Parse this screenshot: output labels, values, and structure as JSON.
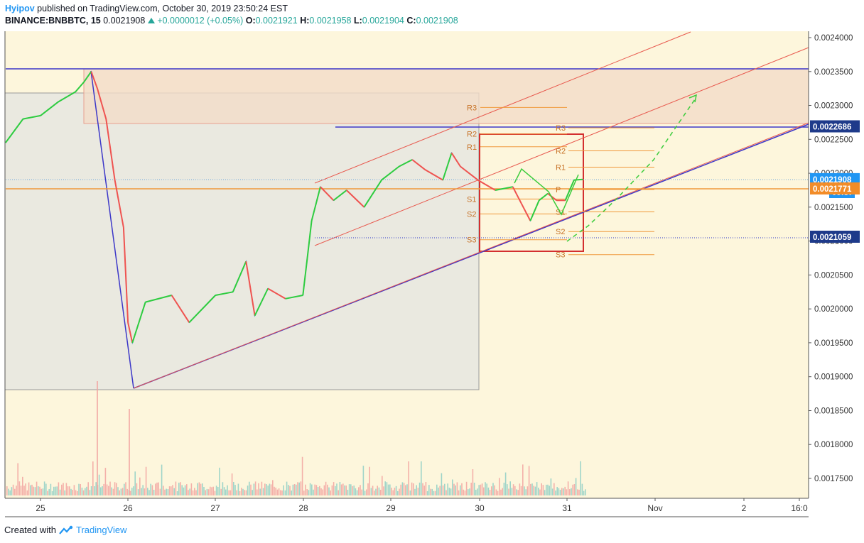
{
  "header": {
    "author": "Hyipov",
    "published_text": "published on TradingView.com, October 30, 2019 23:50:24 EST",
    "symbol": "BINANCE:BNBBTC, 15",
    "last": "0.0021908",
    "change": "+0.0000012 (+0.05%)",
    "o_label": "O:",
    "o_value": "0.0021921",
    "h_label": "H:",
    "h_value": "0.0021958",
    "l_label": "L:",
    "l_value": "0.0021904",
    "c_label": "C:",
    "c_value": "0.0021908"
  },
  "footer": {
    "created_with": "Created with",
    "brand": "TradingView"
  },
  "colors": {
    "background": "#fdf6dc",
    "candle_up": "#26a69a",
    "candle_down": "#ef5350",
    "pivot_orange": "#f0983b",
    "trend_blue": "#3c37c8",
    "channel_red": "#e85a4f",
    "box_red": "#d32f2f",
    "zone_grey": "#9a9a9a",
    "label_blue": "#1e3a8a",
    "label_orange": "#f28c28"
  },
  "chart_data": {
    "type": "line",
    "title": "BINANCE:BNBBTC, 15",
    "x_tick_labels": [
      "25",
      "26",
      "27",
      "28",
      "29",
      "30",
      "31",
      "Nov",
      "2",
      "16:0"
    ],
    "y_tick_labels": [
      "0.0024000",
      "0.0023500",
      "0.0023000",
      "0.0022500",
      "0.0022000",
      "0.0021500",
      "0.0021000",
      "0.0020500",
      "0.0020000",
      "0.0019500",
      "0.0019000",
      "0.0018500",
      "0.0018000",
      "0.0017500"
    ],
    "ylim": [
      0.00171,
      0.00241
    ],
    "xlim_days": [
      24.6,
      34.1
    ],
    "series": [
      {
        "name": "",
        "x": [
          24.6,
          24.8,
          25.0,
          25.2,
          25.4,
          25.5,
          25.58,
          25.65,
          25.75,
          25.85,
          25.95,
          26.0,
          26.05,
          26.2,
          26.5,
          26.7,
          27.0,
          27.2,
          27.35,
          27.45,
          27.6,
          27.8,
          28.0,
          28.05,
          28.1,
          28.2,
          28.35,
          28.5,
          28.7,
          28.9,
          29.1,
          29.25,
          29.4,
          29.6,
          29.7,
          29.8,
          30.0,
          30.2,
          30.4,
          30.5,
          30.6,
          30.7,
          30.8,
          30.9,
          31.0,
          31.1,
          31.2
        ],
        "values": [
          0.002245,
          0.00228,
          0.002285,
          0.002305,
          0.00232,
          0.002335,
          0.00235,
          0.002325,
          0.00228,
          0.00219,
          0.00212,
          0.00198,
          0.00195,
          0.00201,
          0.00202,
          0.00198,
          0.00202,
          0.002025,
          0.00207,
          0.00199,
          0.00203,
          0.002015,
          0.00202,
          0.002075,
          0.00213,
          0.00218,
          0.00216,
          0.002175,
          0.00215,
          0.00219,
          0.00221,
          0.00222,
          0.002205,
          0.00219,
          0.00223,
          0.00221,
          0.00219,
          0.002175,
          0.00218,
          0.002155,
          0.00213,
          0.00216,
          0.00217,
          0.00216,
          0.00216,
          0.00219,
          0.002191
        ]
      }
    ],
    "price_labels": [
      {
        "text": "0.0022686",
        "value": 0.0022686,
        "kind": "blue"
      },
      {
        "text": "0.0021908",
        "value": 0.0021908,
        "kind": "light-blue"
      },
      {
        "text": "09:37",
        "kind": "countdown"
      },
      {
        "text": "0.0021771",
        "value": 0.0021771,
        "kind": "orange"
      },
      {
        "text": "0.0021059",
        "value": 0.0021059,
        "kind": "blue"
      }
    ],
    "pivots": [
      {
        "label": "R3",
        "value": 0.002297
      },
      {
        "label": "R2",
        "value": 0.002258
      },
      {
        "label": "R1",
        "value": 0.002239
      },
      {
        "label": "S1",
        "value": 0.002162
      },
      {
        "label": "S2",
        "value": 0.00214
      },
      {
        "label": "S3",
        "value": 0.002102
      },
      {
        "label": "R3",
        "value": 0.002267
      },
      {
        "label": "R2",
        "value": 0.002233
      },
      {
        "label": "R1",
        "value": 0.002209
      },
      {
        "label": "P",
        "value": 0.002176
      },
      {
        "label": "S1",
        "value": 0.002143
      },
      {
        "label": "S2",
        "value": 0.002114
      },
      {
        "label": "S3",
        "value": 0.00208
      }
    ],
    "grid": false,
    "volume_shown": true
  }
}
